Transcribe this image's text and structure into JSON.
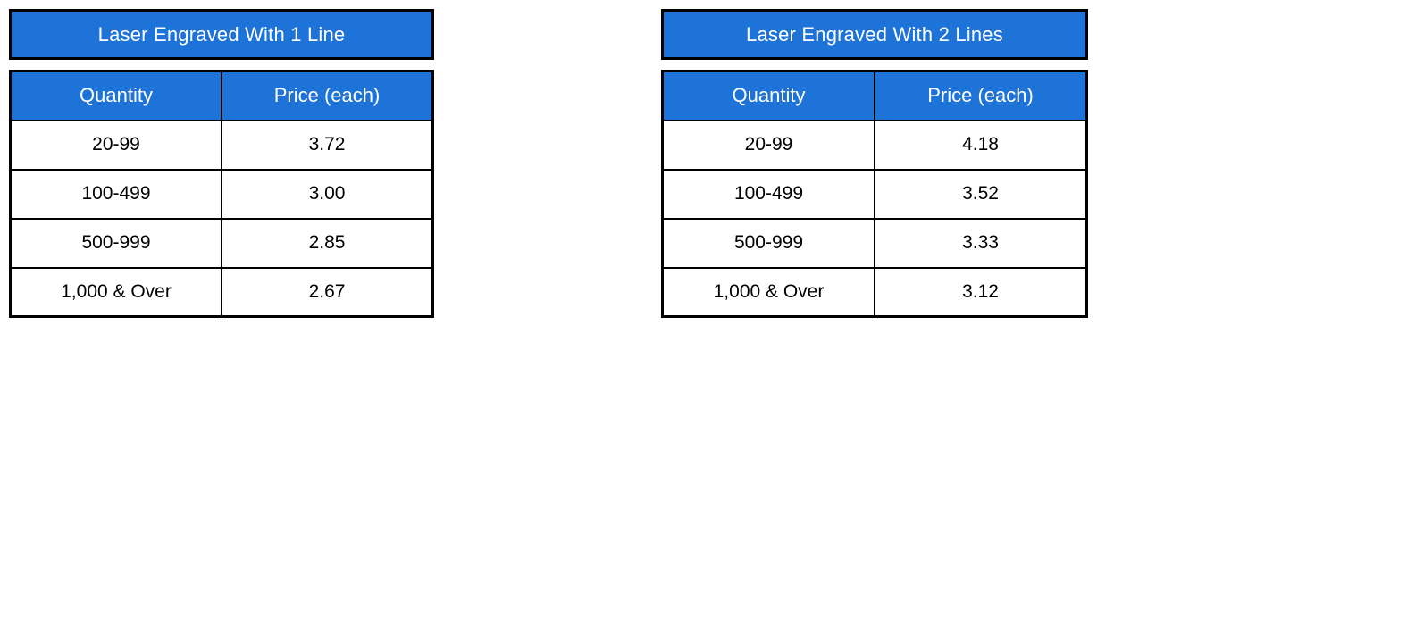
{
  "colors": {
    "header_bg": "#1e73d8",
    "header_text": "#ffffff",
    "cell_text": "#000000",
    "border": "#000000",
    "page_bg": "#ffffff"
  },
  "tables": [
    {
      "title": "Laser Engraved With 1 Line",
      "columns": [
        "Quantity",
        "Price (each)"
      ],
      "rows": [
        [
          "20-99",
          "3.72"
        ],
        [
          "100-499",
          "3.00"
        ],
        [
          "500-999",
          "2.85"
        ],
        [
          "1,000 & Over",
          "2.67"
        ]
      ]
    },
    {
      "title": "Laser Engraved With 2 Lines",
      "columns": [
        "Quantity",
        "Price (each)"
      ],
      "rows": [
        [
          "20-99",
          "4.18"
        ],
        [
          "100-499",
          "3.52"
        ],
        [
          "500-999",
          "3.33"
        ],
        [
          "1,000 & Over",
          "3.12"
        ]
      ]
    }
  ]
}
